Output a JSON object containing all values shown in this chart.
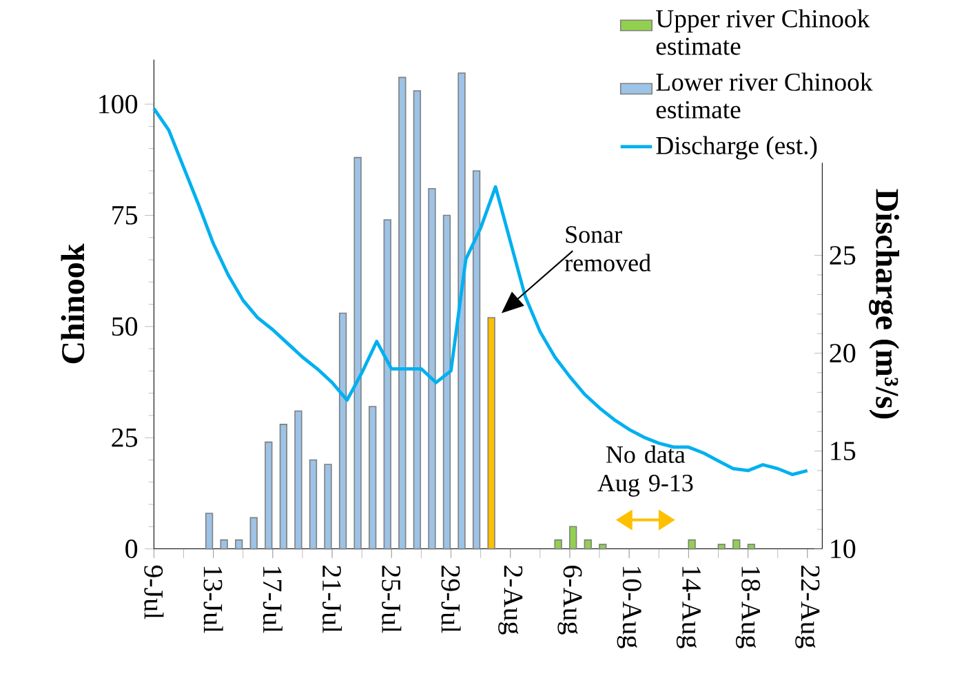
{
  "chart_data": {
    "type": "bar",
    "categories": [
      "9-Jul",
      null,
      null,
      null,
      "13-Jul",
      null,
      null,
      null,
      "17-Jul",
      null,
      null,
      null,
      "21-Jul",
      null,
      null,
      null,
      "25-Jul",
      null,
      null,
      null,
      "29-Jul",
      null,
      null,
      null,
      "2-Aug",
      null,
      null,
      null,
      "6-Aug",
      null,
      null,
      null,
      "10-Aug",
      null,
      null,
      null,
      "14-Aug",
      null,
      null,
      null,
      "18-Aug",
      null,
      null,
      null,
      "22-Aug"
    ],
    "series": [
      {
        "name": "Upper river Chinook estimate",
        "color": "#92d050",
        "values": [
          null,
          null,
          null,
          null,
          null,
          null,
          null,
          null,
          null,
          null,
          null,
          null,
          null,
          null,
          null,
          null,
          null,
          null,
          null,
          null,
          null,
          null,
          null,
          null,
          null,
          null,
          null,
          2,
          5,
          2,
          1,
          null,
          null,
          null,
          null,
          null,
          2,
          null,
          1,
          2,
          1,
          null,
          null,
          null,
          null
        ]
      },
      {
        "name": "Lower river Chinook estimate",
        "color": "#9dc3e6",
        "values": [
          null,
          null,
          null,
          null,
          8,
          2,
          2,
          7,
          24,
          28,
          31,
          20,
          19,
          53,
          88,
          32,
          74,
          106,
          103,
          81,
          75,
          107,
          85,
          52,
          null,
          null,
          null,
          null,
          null,
          null,
          null,
          null,
          null,
          null,
          null,
          null,
          null,
          null,
          null,
          null,
          null,
          null,
          null,
          null,
          null
        ],
        "colors": [
          null,
          null,
          null,
          null,
          "#9dc3e6",
          "#9dc3e6",
          "#9dc3e6",
          "#9dc3e6",
          "#9dc3e6",
          "#9dc3e6",
          "#9dc3e6",
          "#9dc3e6",
          "#9dc3e6",
          "#9dc3e6",
          "#9dc3e6",
          "#9dc3e6",
          "#9dc3e6",
          "#9dc3e6",
          "#9dc3e6",
          "#9dc3e6",
          "#9dc3e6",
          "#9dc3e6",
          "#9dc3e6",
          "#ffc000",
          null,
          null,
          null,
          null,
          null,
          null,
          null,
          null,
          null,
          null,
          null,
          null,
          null,
          null,
          null,
          null,
          null,
          null,
          null,
          null,
          null
        ]
      },
      {
        "name": "Discharge (est.)",
        "type": "line",
        "axis": "y2",
        "color": "#00b0f0",
        "values": [
          32.5,
          31.4,
          29.5,
          27.6,
          25.6,
          24.0,
          22.7,
          21.8,
          21.2,
          20.5,
          19.8,
          19.2,
          18.5,
          17.6,
          19.0,
          20.6,
          19.2,
          19.2,
          19.2,
          18.5,
          19.1,
          24.8,
          26.4,
          28.5,
          25.7,
          22.9,
          21.1,
          19.8,
          18.8,
          17.9,
          17.2,
          16.6,
          16.1,
          15.7,
          15.4,
          15.2,
          15.2,
          14.9,
          14.5,
          14.1,
          14.0,
          14.3,
          14.1,
          13.8,
          14.0
        ]
      }
    ],
    "ylabel": "Chinook",
    "y2label": "Discharge (m³/s)",
    "ylim": [
      0,
      110
    ],
    "yticks": [
      0,
      25,
      50,
      75,
      100
    ],
    "y2lim": [
      10,
      35
    ],
    "y2ticks": [
      10,
      15,
      20,
      25
    ],
    "annotations": [
      "Sonar removed",
      "No data Aug 9-13"
    ],
    "legend": "top right",
    "grid": false
  }
}
